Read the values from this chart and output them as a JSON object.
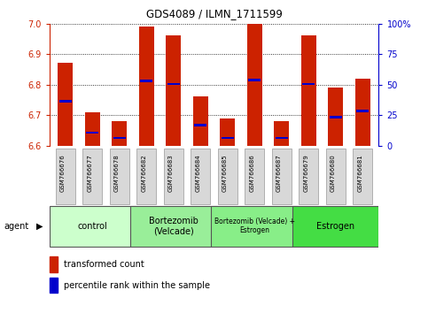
{
  "title": "GDS4089 / ILMN_1711599",
  "samples": [
    "GSM766676",
    "GSM766677",
    "GSM766678",
    "GSM766682",
    "GSM766683",
    "GSM766684",
    "GSM766685",
    "GSM766686",
    "GSM766687",
    "GSM766679",
    "GSM766680",
    "GSM766681"
  ],
  "red_values": [
    6.87,
    6.71,
    6.68,
    6.99,
    6.96,
    6.76,
    6.69,
    7.0,
    6.68,
    6.96,
    6.79,
    6.82
  ],
  "blue_values": [
    6.745,
    6.643,
    6.625,
    6.812,
    6.802,
    6.667,
    6.625,
    6.815,
    6.625,
    6.802,
    6.693,
    6.713
  ],
  "ymin": 6.6,
  "ymax": 7.0,
  "y2min": 0,
  "y2max": 100,
  "yticks_left": [
    6.6,
    6.7,
    6.8,
    6.9,
    7.0
  ],
  "yticks_right": [
    0,
    25,
    50,
    75,
    100
  ],
  "groups": [
    {
      "label": "control",
      "start": 0,
      "end": 3,
      "color": "#ccffcc",
      "fontsize": 7
    },
    {
      "label": "Bortezomib\n(Velcade)",
      "start": 3,
      "end": 6,
      "color": "#99ee99",
      "fontsize": 7
    },
    {
      "label": "Bortezomib (Velcade) +\nEstrogen",
      "start": 6,
      "end": 9,
      "color": "#88ee88",
      "fontsize": 5.5
    },
    {
      "label": "Estrogen",
      "start": 9,
      "end": 12,
      "color": "#44dd44",
      "fontsize": 7
    }
  ],
  "bar_color": "#cc2200",
  "blue_color": "#0000cc",
  "bar_width": 0.55,
  "legend_red": "transformed count",
  "legend_blue": "percentile rank within the sample",
  "agent_label": "agent"
}
